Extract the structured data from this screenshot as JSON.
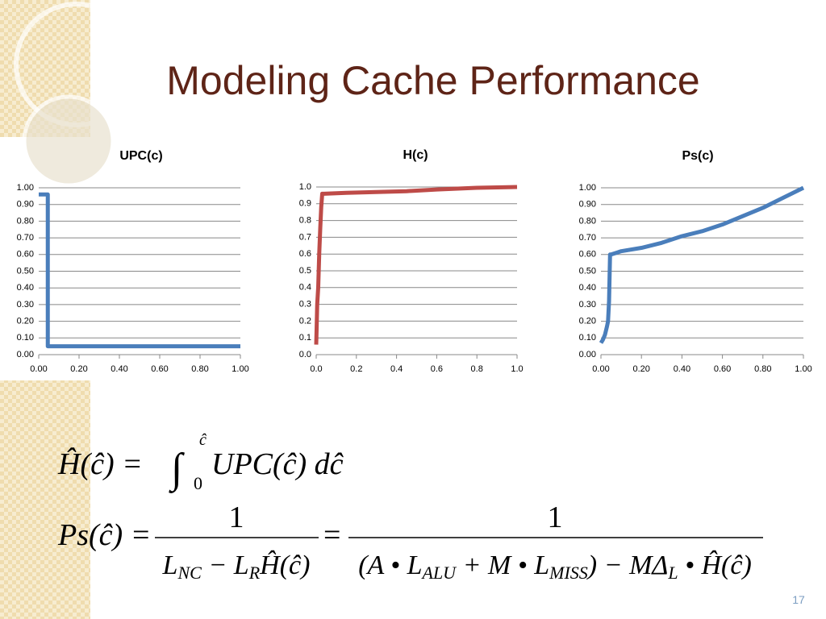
{
  "slide": {
    "title": "Modeling Cache Performance",
    "page_number": "17",
    "equation_1": {
      "left": "Ĥ(ĉ) =",
      "integral": "∫",
      "upper": "ĉ",
      "lower": "0",
      "right": "UPC(ĉ) dĉ"
    },
    "equation_2": {
      "left": "Ps(ĉ) =",
      "numerator_1": "1",
      "numerator_2": "1",
      "equals": "=",
      "denominator_1": [
        {
          "text": "L"
        },
        {
          "text": "NC",
          "sub": true
        },
        {
          "text": " − L"
        },
        {
          "text": "R",
          "sub": true
        },
        {
          "text": "Ĥ(ĉ)"
        }
      ],
      "denominator_2": [
        {
          "text": "(A • L"
        },
        {
          "text": "ALU",
          "sub": true
        },
        {
          "text": " + M • L"
        },
        {
          "text": "MISS",
          "sub": true
        },
        {
          "text": ") − MΔ"
        },
        {
          "text": "L",
          "sub": true
        },
        {
          "text": " • Ĥ(ĉ)"
        }
      ]
    }
  },
  "chart_data": [
    {
      "type": "line",
      "title": "UPC(c)",
      "color": "#4a7ebb",
      "grid": true,
      "x": [
        0,
        0.045,
        0.045,
        1
      ],
      "values": [
        0.96,
        0.96,
        0.05,
        0.05
      ],
      "xlim": [
        0,
        1
      ],
      "ylim": [
        0,
        1
      ],
      "xticks": [
        {
          "value": 0,
          "label": "0.00"
        },
        {
          "value": 0.2,
          "label": "0.20"
        },
        {
          "value": 0.4,
          "label": "0.40"
        },
        {
          "value": 0.6,
          "label": "0.60"
        },
        {
          "value": 0.8,
          "label": "0.80"
        },
        {
          "value": 1,
          "label": "1.00"
        }
      ],
      "yticks": [
        {
          "value": 0,
          "label": "0.00"
        },
        {
          "value": 0.1,
          "label": "0.10"
        },
        {
          "value": 0.2,
          "label": "0.20"
        },
        {
          "value": 0.3,
          "label": "0.30"
        },
        {
          "value": 0.4,
          "label": "0.40"
        },
        {
          "value": 0.5,
          "label": "0.50"
        },
        {
          "value": 0.6,
          "label": "0.60"
        },
        {
          "value": 0.7,
          "label": "0.70"
        },
        {
          "value": 0.8,
          "label": "0.80"
        },
        {
          "value": 0.9,
          "label": "0.90"
        },
        {
          "value": 1,
          "label": "1.00"
        }
      ]
    },
    {
      "type": "line",
      "title": "H(c)",
      "color": "#be4b48",
      "grid": true,
      "x": [
        0,
        0.002,
        0.005,
        0.01,
        0.015,
        0.02,
        0.025,
        0.03,
        0.04,
        0.15,
        0.3,
        0.45,
        0.6,
        0.8,
        1
      ],
      "values": [
        0.06,
        0.15,
        0.3,
        0.4,
        0.6,
        0.75,
        0.88,
        0.96,
        0.96,
        0.965,
        0.97,
        0.975,
        0.985,
        0.995,
        1
      ],
      "xlim": [
        0,
        1
      ],
      "ylim": [
        0,
        1
      ],
      "xticks": [
        {
          "value": 0,
          "label": "0.0"
        },
        0.2,
        0.4,
        0.6,
        0.8,
        {
          "value": 1,
          "label": "1.0"
        }
      ],
      "yticks": [
        {
          "value": 0,
          "label": "0.0"
        },
        0.1,
        0.2,
        0.3,
        0.4,
        0.5,
        0.6,
        0.7,
        0.8,
        0.9,
        {
          "value": 1,
          "label": "1.0"
        }
      ]
    },
    {
      "type": "line",
      "title": "Ps(c)",
      "color": "#4a7ebb",
      "grid": true,
      "x": [
        0,
        0.01,
        0.02,
        0.03,
        0.035,
        0.04,
        0.045,
        0.05,
        0.1,
        0.2,
        0.3,
        0.4,
        0.5,
        0.6,
        0.7,
        0.8,
        0.9,
        1
      ],
      "values": [
        0.07,
        0.09,
        0.12,
        0.17,
        0.2,
        0.32,
        0.6,
        0.6,
        0.62,
        0.64,
        0.67,
        0.71,
        0.74,
        0.78,
        0.83,
        0.88,
        0.94,
        1
      ],
      "xlim": [
        0,
        1
      ],
      "ylim": [
        0,
        1
      ],
      "xticks": [
        {
          "value": 0,
          "label": "0.00"
        },
        {
          "value": 0.2,
          "label": "0.20"
        },
        {
          "value": 0.4,
          "label": "0.40"
        },
        {
          "value": 0.6,
          "label": "0.60"
        },
        {
          "value": 0.8,
          "label": "0.80"
        },
        {
          "value": 1,
          "label": "1.00"
        }
      ],
      "yticks": [
        {
          "value": 0,
          "label": "0.00"
        },
        {
          "value": 0.1,
          "label": "0.10"
        },
        {
          "value": 0.2,
          "label": "0.20"
        },
        {
          "value": 0.3,
          "label": "0.30"
        },
        {
          "value": 0.4,
          "label": "0.40"
        },
        {
          "value": 0.5,
          "label": "0.50"
        },
        {
          "value": 0.6,
          "label": "0.60"
        },
        {
          "value": 0.7,
          "label": "0.70"
        },
        {
          "value": 0.8,
          "label": "0.80"
        },
        {
          "value": 0.9,
          "label": "0.90"
        },
        {
          "value": 1,
          "label": "1.00"
        }
      ]
    }
  ]
}
